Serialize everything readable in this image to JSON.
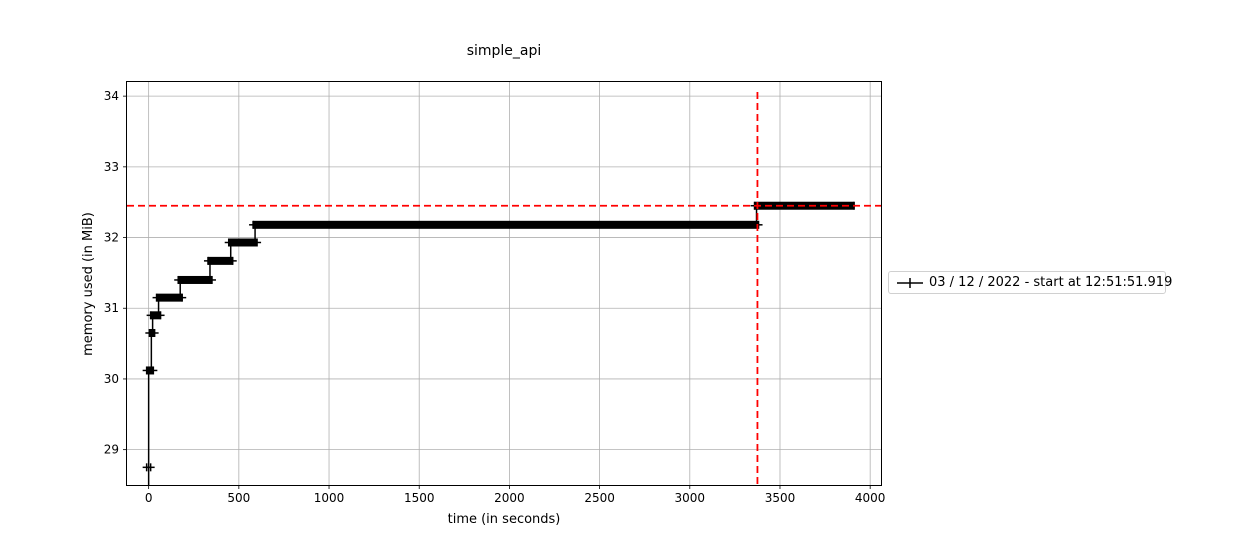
{
  "chart_data": {
    "type": "line",
    "title": "simple_api",
    "xlabel": "time (in seconds)",
    "ylabel": "memory used (in MiB)",
    "xlim": [
      -120,
      4060
    ],
    "ylim": [
      28.5,
      34.2
    ],
    "xticks": [
      0,
      500,
      1000,
      1500,
      2000,
      2500,
      3000,
      3500,
      4000
    ],
    "yticks": [
      29,
      30,
      31,
      32,
      33,
      34
    ],
    "grid": true,
    "legend_position": "outside-right",
    "series": [
      {
        "name": "03 / 12 / 2022 - start at 12:51:51.919",
        "color": "#000000",
        "marker": "+",
        "step_segments": [
          {
            "x0": 0,
            "x1": 0,
            "y": 28.75
          },
          {
            "x0": 0,
            "x1": 15,
            "y": 30.12
          },
          {
            "x0": 15,
            "x1": 22,
            "y": 30.65
          },
          {
            "x0": 22,
            "x1": 55,
            "y": 30.9
          },
          {
            "x0": 55,
            "x1": 175,
            "y": 31.15
          },
          {
            "x0": 175,
            "x1": 340,
            "y": 31.4
          },
          {
            "x0": 340,
            "x1": 455,
            "y": 31.67
          },
          {
            "x0": 455,
            "x1": 590,
            "y": 31.93
          },
          {
            "x0": 590,
            "x1": 3370,
            "y": 32.18
          },
          {
            "x0": 3370,
            "x1": 3900,
            "y": 32.45
          }
        ]
      }
    ],
    "reference_lines": [
      {
        "orientation": "horizontal",
        "value": 32.45,
        "color": "#ff0000",
        "style": "dashed"
      },
      {
        "orientation": "vertical",
        "value": 3375,
        "color": "#ff0000",
        "style": "dashed"
      }
    ]
  }
}
